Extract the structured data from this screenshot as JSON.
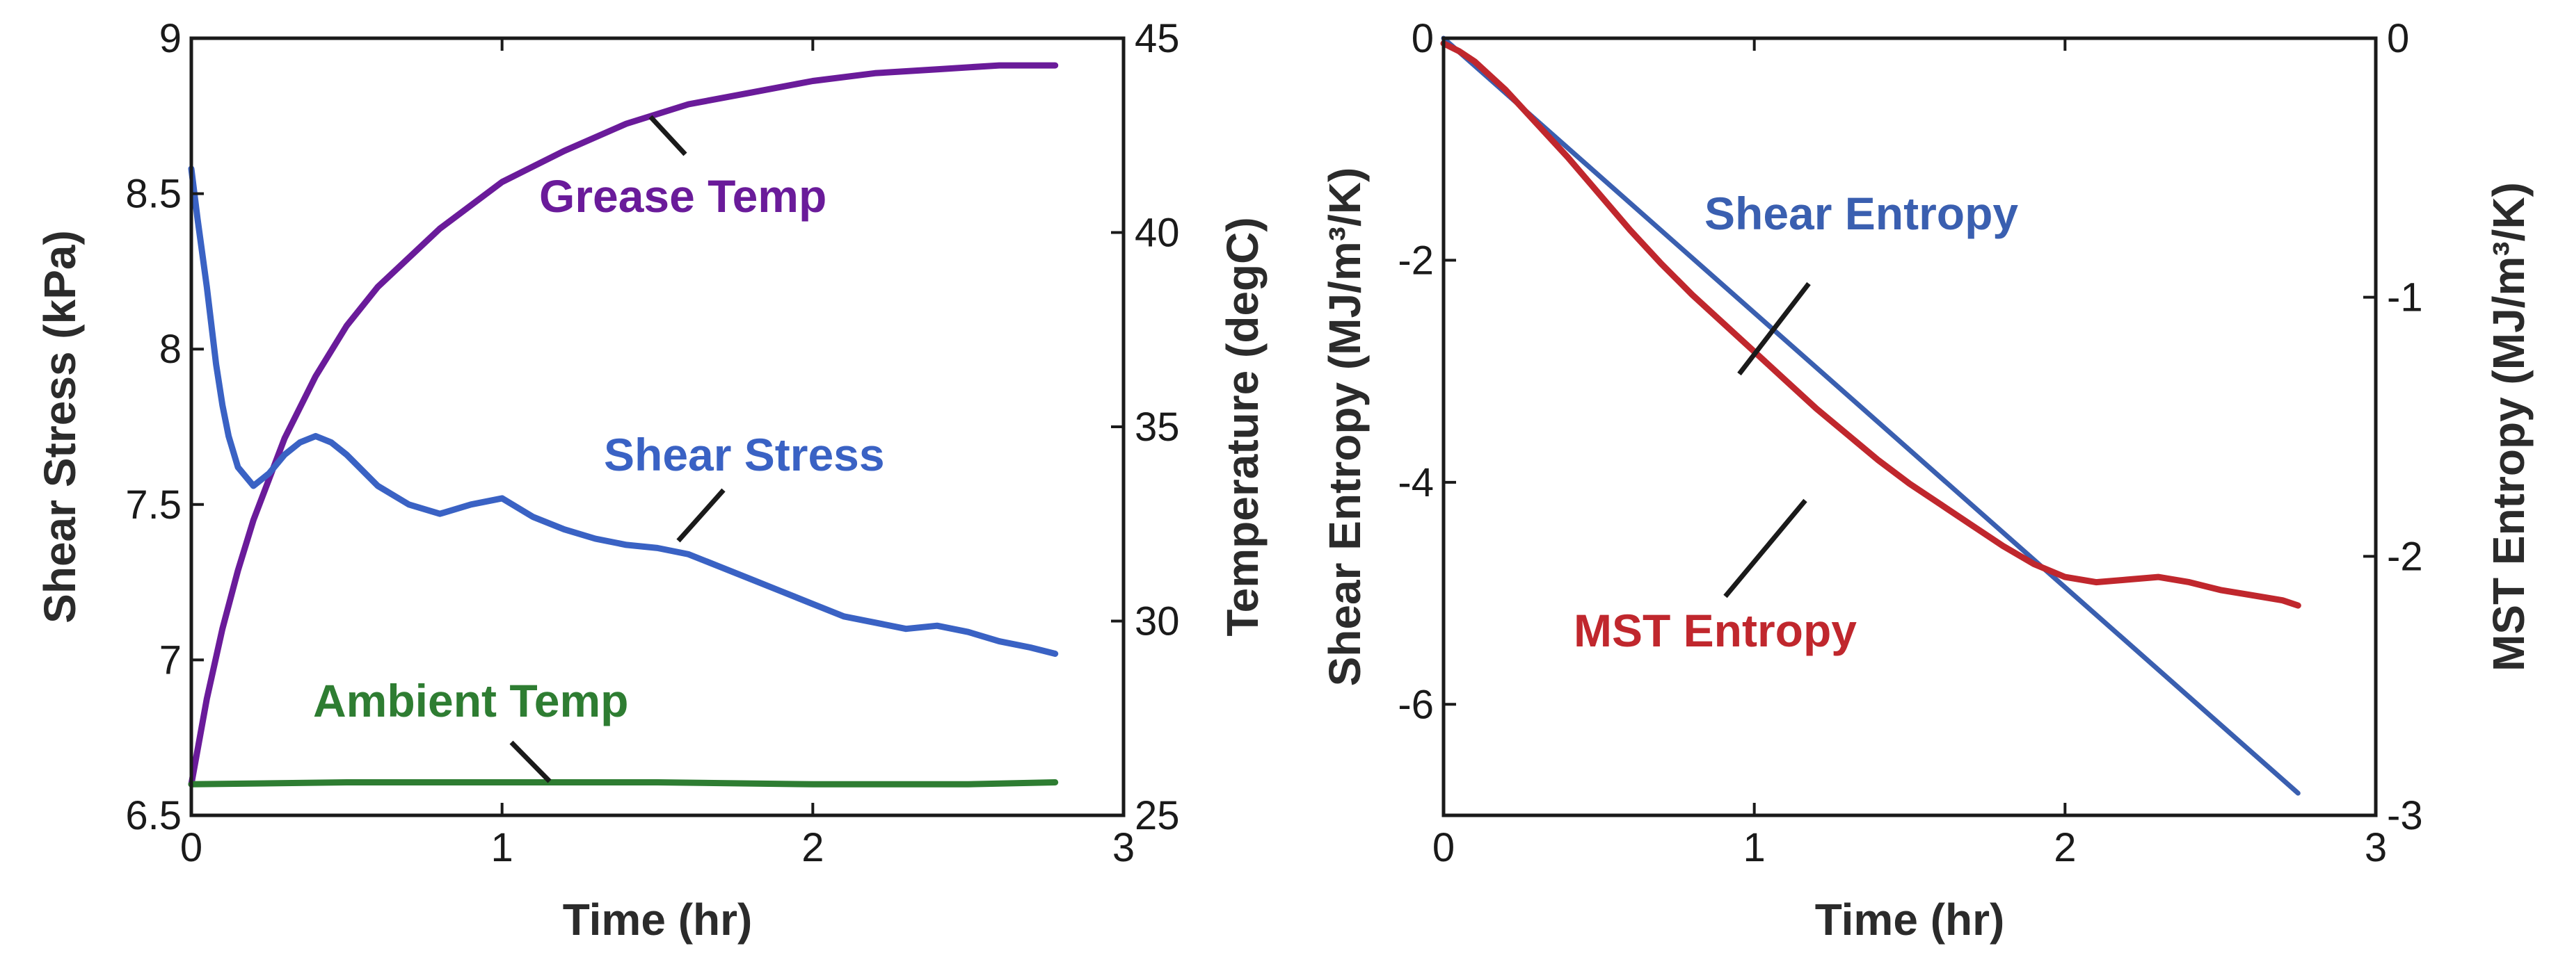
{
  "chart_data": [
    {
      "type": "line",
      "panel": "left",
      "xlabel": "Time (hr)",
      "ylabel_left": "Shear Stress (kPa)",
      "ylabel_right": "Temperature (degC)",
      "xlim": [
        0,
        3
      ],
      "ylim_left": [
        6.5,
        9
      ],
      "ylim_right": [
        25,
        45
      ],
      "x_ticks": [
        "0",
        "1",
        "2",
        "3"
      ],
      "y_ticks_left": [
        "6.5",
        "7",
        "7.5",
        "8",
        "8.5",
        "9"
      ],
      "y_ticks_right": [
        "25",
        "30",
        "35",
        "40",
        "45"
      ],
      "grid": false,
      "annotations": [
        "Grease Temp",
        "Shear Stress",
        "Ambient Temp"
      ],
      "series": [
        {
          "name": "Grease Temp",
          "axis": "right",
          "color": "#6a1b9a",
          "x": [
            0,
            0.05,
            0.1,
            0.15,
            0.2,
            0.3,
            0.4,
            0.5,
            0.6,
            0.8,
            1.0,
            1.2,
            1.4,
            1.6,
            1.8,
            2.0,
            2.2,
            2.4,
            2.6,
            2.78
          ],
          "y": [
            25.8,
            28.0,
            29.8,
            31.3,
            32.6,
            34.7,
            36.3,
            37.6,
            38.6,
            40.1,
            41.3,
            42.1,
            42.8,
            43.3,
            43.6,
            43.9,
            44.1,
            44.2,
            44.3,
            44.3
          ]
        },
        {
          "name": "Shear Stress",
          "axis": "left",
          "color": "#3a62c4",
          "x": [
            0,
            0.02,
            0.05,
            0.08,
            0.1,
            0.12,
            0.15,
            0.2,
            0.25,
            0.3,
            0.35,
            0.4,
            0.45,
            0.5,
            0.6,
            0.7,
            0.8,
            0.9,
            1.0,
            1.1,
            1.2,
            1.3,
            1.4,
            1.5,
            1.6,
            1.7,
            1.8,
            1.9,
            2.0,
            2.1,
            2.2,
            2.3,
            2.4,
            2.5,
            2.6,
            2.7,
            2.78
          ],
          "y": [
            8.58,
            8.42,
            8.2,
            7.95,
            7.82,
            7.72,
            7.62,
            7.56,
            7.6,
            7.66,
            7.7,
            7.72,
            7.7,
            7.66,
            7.56,
            7.5,
            7.47,
            7.5,
            7.52,
            7.46,
            7.42,
            7.39,
            7.37,
            7.36,
            7.34,
            7.3,
            7.26,
            7.22,
            7.18,
            7.14,
            7.12,
            7.1,
            7.11,
            7.09,
            7.06,
            7.04,
            7.02
          ]
        },
        {
          "name": "Ambient Temp",
          "axis": "right",
          "color": "#2e7d32",
          "x": [
            0,
            0.5,
            1.0,
            1.5,
            2.0,
            2.5,
            2.78
          ],
          "y": [
            25.8,
            25.85,
            25.85,
            25.85,
            25.8,
            25.8,
            25.85
          ]
        }
      ]
    },
    {
      "type": "line",
      "panel": "right",
      "xlabel": "Time (hr)",
      "ylabel_left": "Shear Entropy (MJ/m³/K)",
      "ylabel_right": "MST Entropy (MJ/m³/K)",
      "xlim": [
        0,
        3
      ],
      "ylim_left": [
        -7,
        0
      ],
      "ylim_right": [
        -3,
        0
      ],
      "x_ticks": [
        "0",
        "1",
        "2",
        "3"
      ],
      "y_ticks_left": [
        "0",
        "-2",
        "-4",
        "-6"
      ],
      "y_ticks_right": [
        "0",
        "-1",
        "-2",
        "-3"
      ],
      "grid": false,
      "annotations": [
        "Shear Entropy",
        "MST Entropy"
      ],
      "series": [
        {
          "name": "Shear Entropy",
          "axis": "left",
          "color": "#3a5fb0",
          "x": [
            0,
            2.75
          ],
          "y": [
            0,
            -6.8
          ]
        },
        {
          "name": "MST Entropy",
          "axis": "right",
          "color": "#c0272d",
          "x": [
            0,
            0.05,
            0.1,
            0.2,
            0.3,
            0.4,
            0.5,
            0.6,
            0.7,
            0.8,
            0.9,
            1.0,
            1.1,
            1.2,
            1.3,
            1.4,
            1.5,
            1.6,
            1.7,
            1.8,
            1.9,
            2.0,
            2.1,
            2.2,
            2.3,
            2.4,
            2.5,
            2.6,
            2.7,
            2.75
          ],
          "y": [
            -0.02,
            -0.05,
            -0.09,
            -0.2,
            -0.33,
            -0.46,
            -0.6,
            -0.74,
            -0.87,
            -0.99,
            -1.1,
            -1.21,
            -1.32,
            -1.43,
            -1.53,
            -1.63,
            -1.72,
            -1.8,
            -1.88,
            -1.96,
            -2.03,
            -2.08,
            -2.1,
            -2.09,
            -2.08,
            -2.1,
            -2.13,
            -2.15,
            -2.17,
            -2.19
          ]
        }
      ]
    }
  ]
}
